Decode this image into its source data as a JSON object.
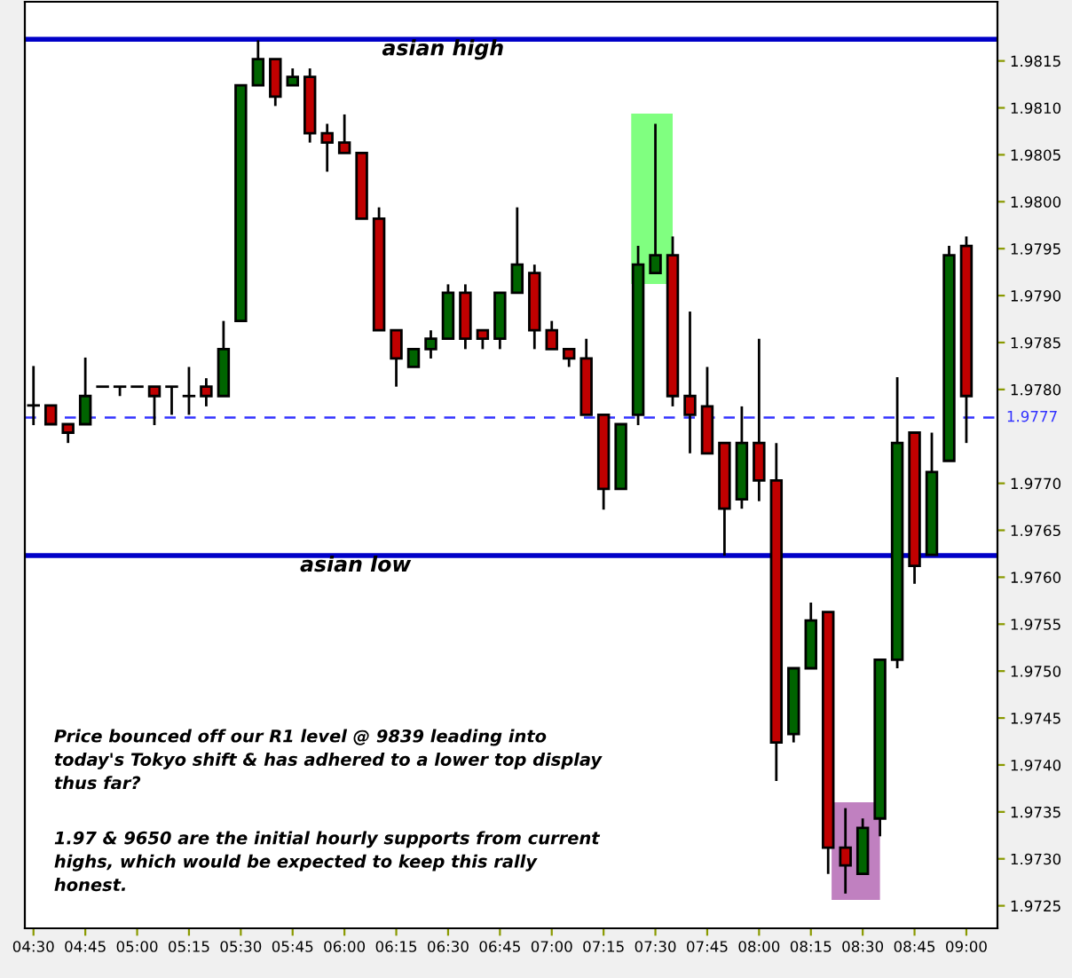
{
  "chart_data": {
    "type": "candlestick",
    "x": [
      4.5,
      4.5833,
      4.6667,
      4.75,
      4.8333,
      4.9167,
      5.0,
      5.0833,
      5.1667,
      5.25,
      5.3333,
      5.4167,
      5.5,
      5.5833,
      5.6667,
      5.75,
      5.8333,
      5.9167,
      6.0,
      6.0833,
      6.1667,
      6.25,
      6.3333,
      6.4167,
      6.5,
      6.5833,
      6.6667,
      6.75,
      6.8333,
      6.9167,
      7.0,
      7.0833,
      7.1667,
      7.25,
      7.3333,
      7.4167,
      7.5,
      7.5833,
      7.6667,
      7.75,
      7.8333,
      7.9167,
      8.0,
      8.0833,
      8.1667,
      8.25,
      8.3333,
      8.4167,
      8.5,
      8.5833,
      8.6667,
      8.75,
      8.8333,
      8.9167,
      9.0
    ],
    "ohlc": [
      [
        1.97783,
        1.97825,
        1.97762,
        1.97783
      ],
      [
        1.97783,
        1.97783,
        1.97763,
        1.97763
      ],
      [
        1.97763,
        1.97763,
        1.97743,
        1.97754
      ],
      [
        1.97763,
        1.97834,
        1.97763,
        1.97793
      ],
      [
        1.97803,
        1.97803,
        1.97803,
        1.97803
      ],
      [
        1.97803,
        1.97803,
        1.97793,
        1.97803
      ],
      [
        1.97803,
        1.97803,
        1.97803,
        1.97803
      ],
      [
        1.97803,
        1.97803,
        1.97762,
        1.97793
      ],
      [
        1.97803,
        1.97803,
        1.97773,
        1.97803
      ],
      [
        1.97793,
        1.97824,
        1.97773,
        1.97793
      ],
      [
        1.97803,
        1.97812,
        1.97782,
        1.97793
      ],
      [
        1.97793,
        1.97873,
        1.97793,
        1.97843
      ],
      [
        1.97873,
        1.98124,
        1.97873,
        1.98124
      ],
      [
        1.98124,
        1.98172,
        1.98124,
        1.98152
      ],
      [
        1.98152,
        1.98152,
        1.98102,
        1.98112
      ],
      [
        1.98124,
        1.98142,
        1.98124,
        1.98133
      ],
      [
        1.98133,
        1.98142,
        1.98063,
        1.98073
      ],
      [
        1.98073,
        1.98083,
        1.98032,
        1.98063
      ],
      [
        1.98063,
        1.98093,
        1.98052,
        1.98052
      ],
      [
        1.98052,
        1.98052,
        1.97982,
        1.97982
      ],
      [
        1.97982,
        1.97994,
        1.97863,
        1.97863
      ],
      [
        1.97863,
        1.97863,
        1.97803,
        1.97833
      ],
      [
        1.97824,
        1.97843,
        1.97824,
        1.97843
      ],
      [
        1.97843,
        1.97863,
        1.97833,
        1.97854
      ],
      [
        1.97854,
        1.97912,
        1.97854,
        1.97903
      ],
      [
        1.97903,
        1.97912,
        1.97843,
        1.97854
      ],
      [
        1.97863,
        1.97863,
        1.97843,
        1.97854
      ],
      [
        1.97854,
        1.97903,
        1.97843,
        1.97903
      ],
      [
        1.97903,
        1.97994,
        1.97903,
        1.97933
      ],
      [
        1.97924,
        1.97933,
        1.97843,
        1.97863
      ],
      [
        1.97863,
        1.97873,
        1.97843,
        1.97843
      ],
      [
        1.97843,
        1.97843,
        1.97824,
        1.97833
      ],
      [
        1.97833,
        1.97854,
        1.97773,
        1.97773
      ],
      [
        1.97773,
        1.97773,
        1.97672,
        1.97694
      ],
      [
        1.97694,
        1.97763,
        1.97694,
        1.97763
      ],
      [
        1.97773,
        1.97953,
        1.97762,
        1.97933
      ],
      [
        1.97924,
        1.98083,
        1.97924,
        1.97943
      ],
      [
        1.97943,
        1.97963,
        1.97782,
        1.97793
      ],
      [
        1.97793,
        1.97883,
        1.97732,
        1.97773
      ],
      [
        1.97782,
        1.97824,
        1.97732,
        1.97732
      ],
      [
        1.97743,
        1.97743,
        1.97623,
        1.97673
      ],
      [
        1.97683,
        1.97782,
        1.97673,
        1.97743
      ],
      [
        1.97743,
        1.97854,
        1.97681,
        1.97703
      ],
      [
        1.97703,
        1.97743,
        1.97383,
        1.97424
      ],
      [
        1.97433,
        1.97503,
        1.97424,
        1.97503
      ],
      [
        1.97503,
        1.97573,
        1.97503,
        1.97554
      ],
      [
        1.97563,
        1.97563,
        1.97284,
        1.97312
      ],
      [
        1.97312,
        1.97354,
        1.97263,
        1.97293
      ],
      [
        1.97284,
        1.97343,
        1.97284,
        1.97333
      ],
      [
        1.97343,
        1.97512,
        1.97324,
        1.97512
      ],
      [
        1.97512,
        1.97813,
        1.97503,
        1.97743
      ],
      [
        1.97754,
        1.97754,
        1.97593,
        1.97612
      ],
      [
        1.97624,
        1.97754,
        1.97624,
        1.97712
      ],
      [
        1.97724,
        1.97953,
        1.97724,
        1.97943
      ],
      [
        1.97953,
        1.97963,
        1.97743,
        1.97793
      ]
    ],
    "colors": [
      "#000000",
      "#c00000",
      "#c00000",
      "#006400",
      "#000000",
      "#000000",
      "#000000",
      "#c00000",
      "#000000",
      "#000000",
      "#c00000",
      "#006400",
      "#006400",
      "#006400",
      "#c00000",
      "#006400",
      "#c00000",
      "#c00000",
      "#c00000",
      "#c00000",
      "#c00000",
      "#c00000",
      "#006400",
      "#006400",
      "#006400",
      "#c00000",
      "#c00000",
      "#006400",
      "#006400",
      "#c00000",
      "#c00000",
      "#c00000",
      "#c00000",
      "#c00000",
      "#006400",
      "#006400",
      "#006400",
      "#c00000",
      "#c00000",
      "#c00000",
      "#c00000",
      "#006400",
      "#c00000",
      "#c00000",
      "#006400",
      "#006400",
      "#c00000",
      "#c00000",
      "#006400",
      "#006400",
      "#006400",
      "#c00000",
      "#006400",
      "#006400",
      "#c00000"
    ],
    "xlim": [
      4.4583,
      9.15
    ],
    "xticks": [
      {
        "value": 4.5,
        "label": "04:30"
      },
      {
        "value": 4.75,
        "label": "04:45"
      },
      {
        "value": 5.0,
        "label": "05:00"
      },
      {
        "value": 5.25,
        "label": "05:15"
      },
      {
        "value": 5.5,
        "label": "05:30"
      },
      {
        "value": 5.75,
        "label": "05:45"
      },
      {
        "value": 6.0,
        "label": "06:00"
      },
      {
        "value": 6.25,
        "label": "06:15"
      },
      {
        "value": 6.5,
        "label": "06:30"
      },
      {
        "value": 6.75,
        "label": "06:45"
      },
      {
        "value": 7.0,
        "label": "07:00"
      },
      {
        "value": 7.25,
        "label": "07:15"
      },
      {
        "value": 7.5,
        "label": "07:30"
      },
      {
        "value": 7.75,
        "label": "07:45"
      },
      {
        "value": 8.0,
        "label": "08:00"
      },
      {
        "value": 8.25,
        "label": "08:15"
      },
      {
        "value": 8.5,
        "label": "08:30"
      },
      {
        "value": 8.75,
        "label": "08:45"
      },
      {
        "value": 9.0,
        "label": "09:00"
      }
    ],
    "ylim": [
      1.97226,
      1.98213
    ],
    "yticks": [
      {
        "value": 1.9725,
        "label": "1.9725"
      },
      {
        "value": 1.973,
        "label": "1.9730"
      },
      {
        "value": 1.9735,
        "label": "1.9735"
      },
      {
        "value": 1.974,
        "label": "1.9740"
      },
      {
        "value": 1.9745,
        "label": "1.9745"
      },
      {
        "value": 1.975,
        "label": "1.9750"
      },
      {
        "value": 1.9755,
        "label": "1.9755"
      },
      {
        "value": 1.976,
        "label": "1.9760"
      },
      {
        "value": 1.9765,
        "label": "1.9765"
      },
      {
        "value": 1.977,
        "label": "1.9770"
      },
      {
        "value": 1.978,
        "label": "1.9780"
      },
      {
        "value": 1.9785,
        "label": "1.9785"
      },
      {
        "value": 1.979,
        "label": "1.9790"
      },
      {
        "value": 1.9795,
        "label": "1.9795"
      },
      {
        "value": 1.98,
        "label": "1.9800"
      },
      {
        "value": 1.9805,
        "label": "1.9805"
      },
      {
        "value": 1.981,
        "label": "1.9810"
      },
      {
        "value": 1.9815,
        "label": "1.9815"
      }
    ],
    "ref_lines": [
      {
        "axis": "y",
        "value": 1.98173,
        "label": "asian high",
        "color": "#0000c8",
        "line_style": "solid"
      },
      {
        "axis": "y",
        "value": 1.97623,
        "label": "asian low",
        "color": "#0000c8",
        "line_style": "solid"
      },
      {
        "axis": "y",
        "value": 1.9777,
        "label": "1.9777",
        "color": "#3333ff",
        "line_style": "dashed"
      }
    ],
    "annotations": [
      "Price bounced off our R1 level @ 9839 leading into\ntoday's Tokyo shift & has adhered to a lower top display\nthus far?",
      "1.97 & 9650 are the initial hourly supports from current\nhighs, which would be expected to keep this rally\nhonest."
    ],
    "grid": false,
    "legend": false
  }
}
